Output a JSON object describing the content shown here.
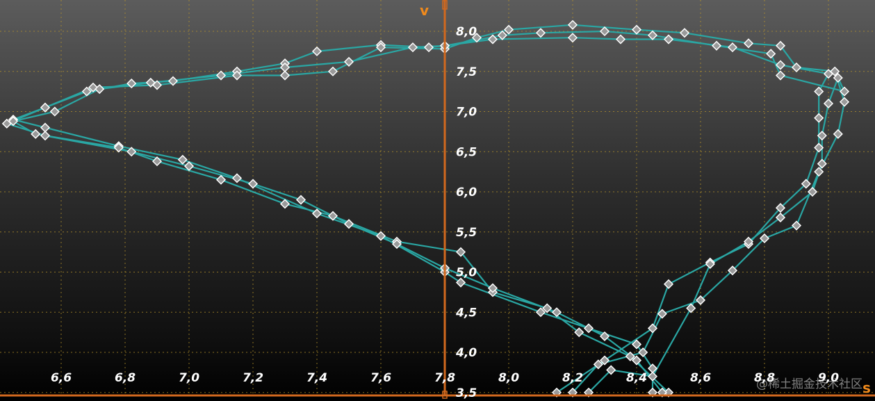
{
  "watermark": "@稀土掘金技术社区",
  "colors": {
    "series": "#2aa7a4",
    "marker_fill": "#9a9a9a",
    "axis": "#d2691e",
    "axis_label": "#f08a1c",
    "grid": "#b8952a",
    "tick_text": "#ffffff"
  },
  "chart_data": {
    "type": "line",
    "title": "",
    "xlabel": "s",
    "ylabel": "v",
    "xlim": [
      6.43,
      9.2
    ],
    "ylim": [
      3.5,
      8.3
    ],
    "y_axis_at_x": 7.8,
    "x_ticks": [
      "6,6",
      "6,8",
      "7,0",
      "7,2",
      "7,4",
      "7,6",
      "7,8",
      "8,0",
      "8,2",
      "8,4",
      "8,6",
      "8,8",
      "9,0"
    ],
    "x_tick_values": [
      6.6,
      6.8,
      7.0,
      7.2,
      7.4,
      7.6,
      7.8,
      8.0,
      8.2,
      8.4,
      8.6,
      8.8,
      9.0
    ],
    "y_ticks": [
      "3,5",
      "4,0",
      "4,5",
      "5,0",
      "5,5",
      "6,0",
      "6,5",
      "7,0",
      "7,5",
      "8,0"
    ],
    "y_tick_values": [
      3.5,
      4.0,
      4.5,
      5.0,
      5.5,
      6.0,
      6.5,
      7.0,
      7.5,
      8.0
    ],
    "grid": true,
    "markers": "diamond",
    "series": [
      {
        "values": [
          [
            8.15,
            3.5
          ],
          [
            8.3,
            3.9
          ],
          [
            8.45,
            4.3
          ],
          [
            8.5,
            4.85
          ],
          [
            8.63,
            5.12
          ],
          [
            8.75,
            5.35
          ],
          [
            8.85,
            5.8
          ],
          [
            8.93,
            6.1
          ],
          [
            8.97,
            6.55
          ],
          [
            8.97,
            6.92
          ],
          [
            8.97,
            7.25
          ],
          [
            9.0,
            7.47
          ],
          [
            8.85,
            7.58
          ],
          [
            8.7,
            7.8
          ],
          [
            8.5,
            7.9
          ],
          [
            8.35,
            7.9
          ],
          [
            8.2,
            7.92
          ],
          [
            7.95,
            7.9
          ],
          [
            7.8,
            7.82
          ],
          [
            7.75,
            7.8
          ],
          [
            7.6,
            7.83
          ],
          [
            7.4,
            7.75
          ],
          [
            7.3,
            7.6
          ],
          [
            7.15,
            7.5
          ],
          [
            6.95,
            7.38
          ],
          [
            6.82,
            7.35
          ],
          [
            6.68,
            7.25
          ],
          [
            6.55,
            7.05
          ],
          [
            6.45,
            6.9
          ],
          [
            6.55,
            6.8
          ],
          [
            6.78,
            6.57
          ],
          [
            6.98,
            6.4
          ],
          [
            7.15,
            6.17
          ],
          [
            7.4,
            5.73
          ],
          [
            7.6,
            5.45
          ],
          [
            7.8,
            5.0
          ],
          [
            7.85,
            4.87
          ],
          [
            8.1,
            4.5
          ],
          [
            8.25,
            4.3
          ],
          [
            8.4,
            4.1
          ],
          [
            8.45,
            3.8
          ],
          [
            8.45,
            3.5
          ]
        ]
      },
      {
        "values": [
          [
            8.2,
            3.5
          ],
          [
            8.28,
            3.85
          ],
          [
            8.42,
            4.0
          ],
          [
            8.48,
            4.48
          ],
          [
            8.6,
            4.65
          ],
          [
            8.7,
            5.02
          ],
          [
            8.8,
            5.42
          ],
          [
            8.9,
            5.58
          ],
          [
            8.97,
            6.25
          ],
          [
            9.03,
            6.72
          ],
          [
            9.05,
            7.12
          ],
          [
            9.02,
            7.5
          ],
          [
            8.9,
            7.55
          ],
          [
            8.85,
            7.82
          ],
          [
            8.75,
            7.85
          ],
          [
            8.55,
            7.98
          ],
          [
            8.4,
            8.02
          ],
          [
            8.2,
            8.08
          ],
          [
            8.0,
            8.02
          ],
          [
            7.9,
            7.92
          ],
          [
            7.8,
            7.78
          ],
          [
            7.6,
            7.8
          ],
          [
            7.45,
            7.5
          ],
          [
            7.3,
            7.45
          ],
          [
            7.15,
            7.45
          ],
          [
            6.9,
            7.33
          ],
          [
            6.7,
            7.3
          ],
          [
            6.55,
            7.05
          ],
          [
            6.43,
            6.85
          ],
          [
            6.55,
            6.7
          ],
          [
            6.78,
            6.55
          ],
          [
            6.9,
            6.38
          ],
          [
            7.1,
            6.15
          ],
          [
            7.3,
            5.85
          ],
          [
            7.45,
            5.7
          ],
          [
            7.65,
            5.38
          ],
          [
            7.85,
            5.25
          ],
          [
            7.95,
            4.75
          ],
          [
            8.12,
            4.55
          ],
          [
            8.22,
            4.25
          ],
          [
            8.38,
            3.95
          ],
          [
            8.5,
            3.5
          ]
        ]
      },
      {
        "values": [
          [
            8.25,
            3.5
          ],
          [
            8.32,
            3.78
          ],
          [
            8.45,
            3.7
          ],
          [
            8.57,
            4.55
          ],
          [
            8.63,
            5.1
          ],
          [
            8.75,
            5.38
          ],
          [
            8.85,
            5.68
          ],
          [
            8.95,
            6.0
          ],
          [
            8.98,
            6.35
          ],
          [
            8.98,
            6.7
          ],
          [
            9.0,
            7.1
          ],
          [
            9.03,
            7.42
          ],
          [
            9.05,
            7.25
          ],
          [
            8.85,
            7.45
          ],
          [
            8.82,
            7.72
          ],
          [
            8.65,
            7.82
          ],
          [
            8.45,
            7.95
          ],
          [
            8.3,
            8.0
          ],
          [
            8.1,
            7.98
          ],
          [
            7.98,
            7.95
          ],
          [
            7.8,
            7.82
          ],
          [
            7.7,
            7.8
          ],
          [
            7.5,
            7.62
          ],
          [
            7.3,
            7.55
          ],
          [
            7.1,
            7.45
          ],
          [
            6.88,
            7.36
          ],
          [
            6.72,
            7.28
          ],
          [
            6.58,
            7.0
          ],
          [
            6.45,
            6.88
          ],
          [
            6.52,
            6.72
          ],
          [
            6.82,
            6.5
          ],
          [
            7.0,
            6.32
          ],
          [
            7.2,
            6.1
          ],
          [
            7.35,
            5.9
          ],
          [
            7.5,
            5.6
          ],
          [
            7.65,
            5.35
          ],
          [
            7.8,
            5.05
          ],
          [
            7.95,
            4.8
          ],
          [
            8.15,
            4.5
          ],
          [
            8.3,
            4.2
          ],
          [
            8.4,
            3.9
          ],
          [
            8.48,
            3.5
          ]
        ]
      }
    ]
  }
}
